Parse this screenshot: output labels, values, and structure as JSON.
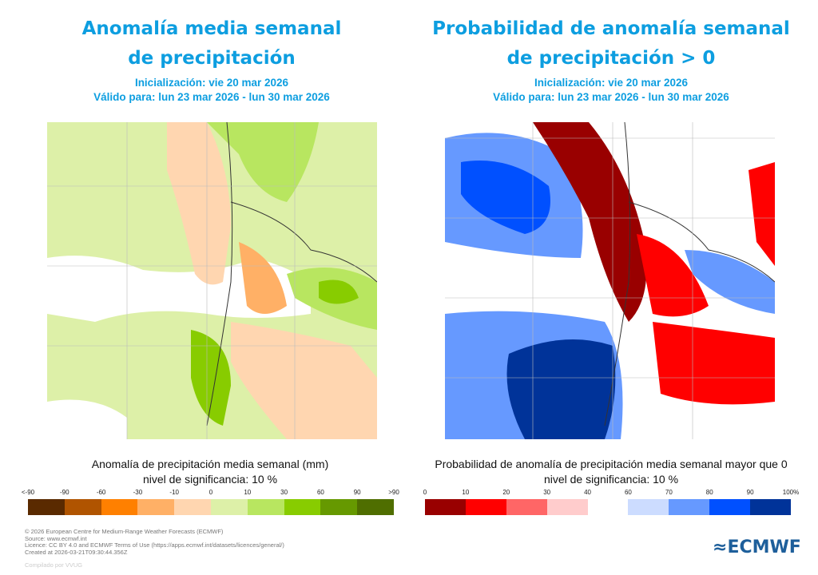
{
  "left": {
    "title_line1": "Anomalía media semanal",
    "title_line2": "de precipitación",
    "init": "Inicialización: vie 20 mar 2026",
    "valid": "Válido para: lun 23 mar 2026 - lun 30 mar 2026",
    "caption": "Anomalía de precipitación media semanal (mm)",
    "significance": "nivel de significancia: 10 %"
  },
  "right": {
    "title_line1": "Probabilidad de anomalía semanal",
    "title_line2": "de precipitación > 0",
    "init": "Inicialización: vie 20 mar 2026",
    "valid": "Válido para: lun 23 mar 2026 - lun 30 mar 2026",
    "caption": "Probabilidad de anomalía de precipitación media semanal mayor que 0",
    "significance": "nivel de significancia: 10 %"
  },
  "chart_data": [
    {
      "type": "heatmap",
      "title": "Anomalía media semanal de precipitación",
      "colorbar_label": "Anomalía de precipitación media semanal (mm)",
      "ticks": [
        "<-90",
        "-90",
        "-60",
        "-30",
        "-10",
        "0",
        "10",
        "30",
        "60",
        "90",
        ">90"
      ],
      "colors": [
        "#5a2a00",
        "#b05400",
        "#ff8000",
        "#ffb066",
        "#ffd6b0",
        "#ddf0a8",
        "#b8e660",
        "#88cc00",
        "#669900",
        "#4f6e00"
      ]
    },
    {
      "type": "heatmap",
      "title": "Probabilidad de anomalía semanal de precipitación > 0",
      "colorbar_label": "Probabilidad de anomalía de precipitación media semanal mayor que 0",
      "ticks": [
        "0",
        "10",
        "20",
        "30",
        "40",
        "60",
        "70",
        "80",
        "90",
        "100%"
      ],
      "colors": [
        "#990000",
        "#ff0000",
        "#ff6666",
        "#ffcccc",
        "#ffffff",
        "#ccdcff",
        "#6699ff",
        "#0050ff",
        "#003399"
      ]
    }
  ],
  "footer": {
    "lines": [
      "© 2026 European Centre for Medium-Range Weather Forecasts (ECMWF)",
      "Source: www.ecmwf.int",
      "Licence: CC BY 4.0 and ECMWF Terms of Use (https://apps.ecmwf.int/datasets/licences/general/)",
      "Created at 2026-03-21T09:30:44.356Z"
    ],
    "compiled": "Compilado por VVUG",
    "logo": "ECMWF"
  }
}
